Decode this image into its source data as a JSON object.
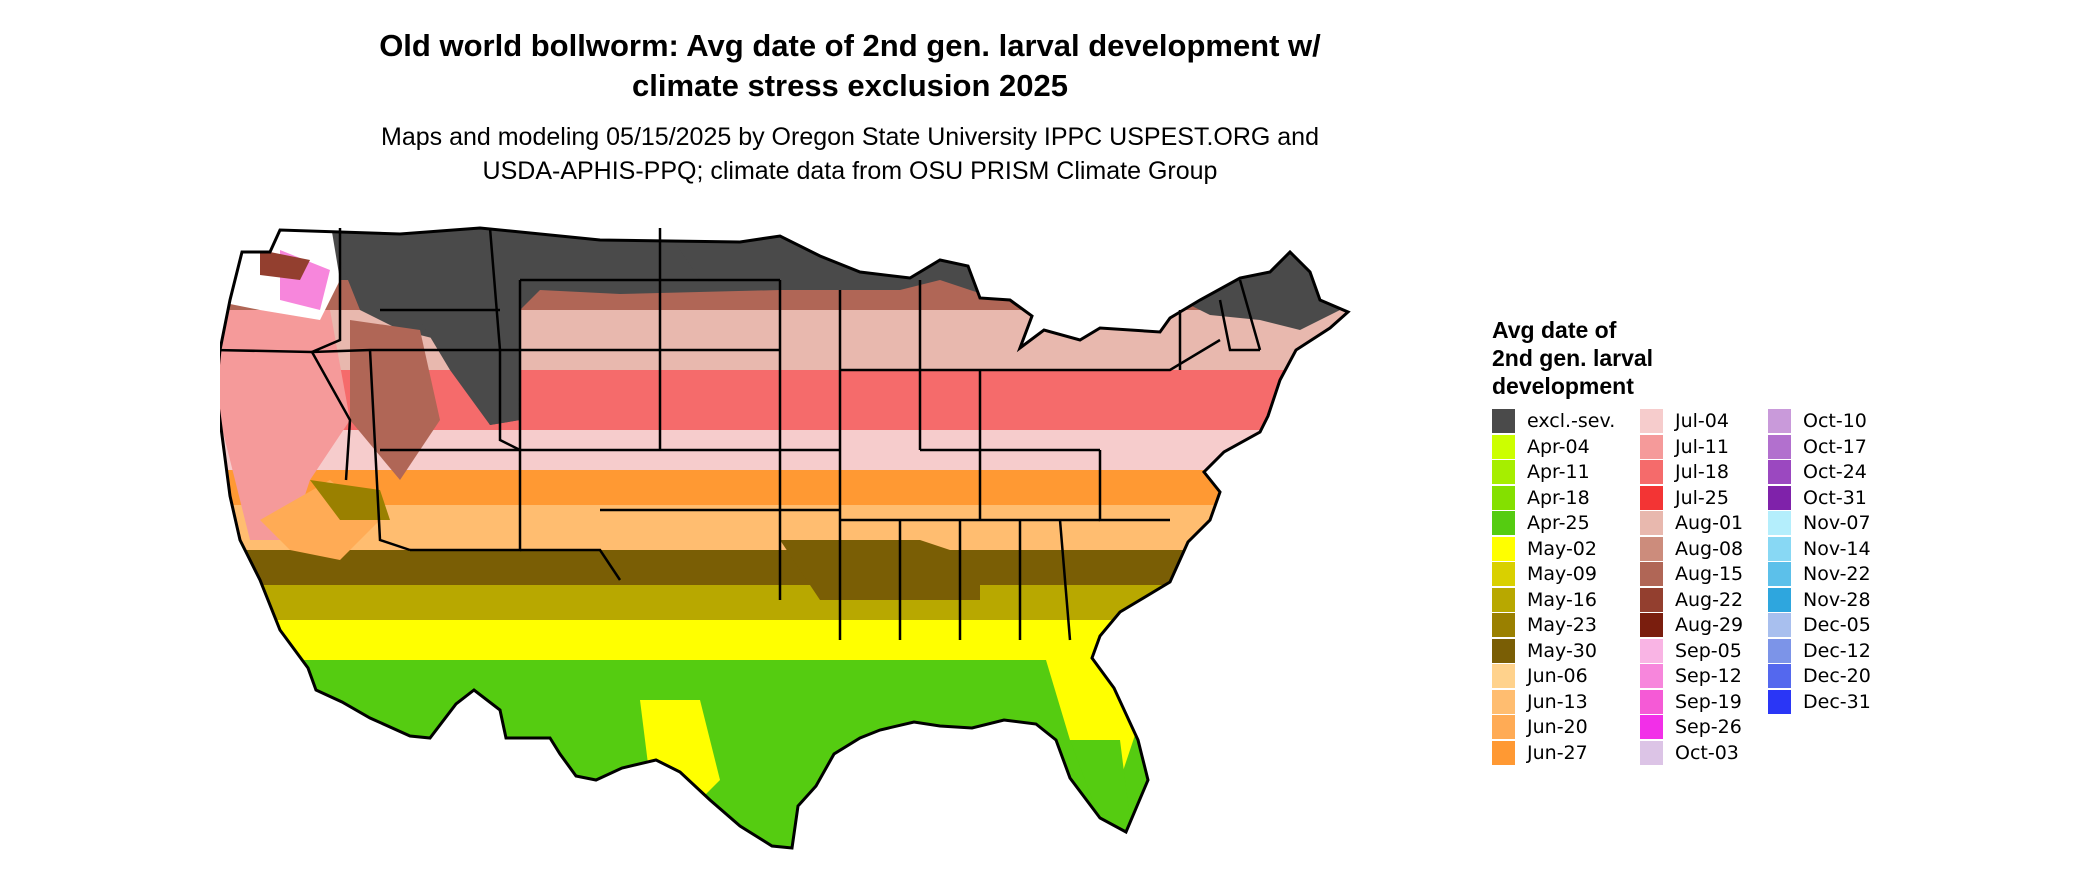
{
  "title_lines": [
    "Old world bollworm: Avg date of 2nd gen. larval development w/",
    "climate stress exclusion 2025"
  ],
  "subtitle_lines": [
    "Maps and modeling 05/15/2025 by Oregon State University IPPC USPEST.ORG and",
    "USDA-APHIS-PPQ; climate data from OSU PRISM Climate Group"
  ],
  "legend": {
    "title_lines": [
      "Avg date of",
      "2nd gen. larval",
      "development"
    ],
    "items": [
      {
        "label": "excl.-sev.",
        "color": "#4a4a4a"
      },
      {
        "label": "Apr-04",
        "color": "#ccff00"
      },
      {
        "label": "Apr-11",
        "color": "#a6ee00"
      },
      {
        "label": "Apr-18",
        "color": "#84e000"
      },
      {
        "label": "Apr-25",
        "color": "#55cc11"
      },
      {
        "label": "May-02",
        "color": "#ffff00"
      },
      {
        "label": "May-09",
        "color": "#d9d000"
      },
      {
        "label": "May-16",
        "color": "#b8a800"
      },
      {
        "label": "May-23",
        "color": "#9a8000"
      },
      {
        "label": "May-30",
        "color": "#7a5e05"
      },
      {
        "label": "Jun-06",
        "color": "#ffd28c"
      },
      {
        "label": "Jun-13",
        "color": "#ffbd70"
      },
      {
        "label": "Jun-20",
        "color": "#ffab55"
      },
      {
        "label": "Jun-27",
        "color": "#ff9933"
      },
      {
        "label": "Jul-04",
        "color": "#f6cccc"
      },
      {
        "label": "Jul-11",
        "color": "#f59a9a"
      },
      {
        "label": "Jul-18",
        "color": "#f56b6b"
      },
      {
        "label": "Jul-25",
        "color": "#f33434"
      },
      {
        "label": "Aug-01",
        "color": "#e8b8ae"
      },
      {
        "label": "Aug-08",
        "color": "#cc8c7c"
      },
      {
        "label": "Aug-15",
        "color": "#b06656"
      },
      {
        "label": "Aug-22",
        "color": "#933f2f"
      },
      {
        "label": "Aug-29",
        "color": "#7a1e0e"
      },
      {
        "label": "Sep-05",
        "color": "#f9b4e4"
      },
      {
        "label": "Sep-12",
        "color": "#f786dc"
      },
      {
        "label": "Sep-19",
        "color": "#f55ad6"
      },
      {
        "label": "Sep-26",
        "color": "#f22fe8"
      },
      {
        "label": "Oct-03",
        "color": "#dcc4e6"
      },
      {
        "label": "Oct-10",
        "color": "#c99ada"
      },
      {
        "label": "Oct-17",
        "color": "#b270ce"
      },
      {
        "label": "Oct-24",
        "color": "#9b48c0"
      },
      {
        "label": "Oct-31",
        "color": "#7f22aa"
      },
      {
        "label": "Nov-07",
        "color": "#b4eefc"
      },
      {
        "label": "Nov-14",
        "color": "#88d8f4"
      },
      {
        "label": "Nov-22",
        "color": "#5cc0ea"
      },
      {
        "label": "Nov-28",
        "color": "#2ea6de"
      },
      {
        "label": "Dec-05",
        "color": "#a8bfee"
      },
      {
        "label": "Dec-12",
        "color": "#7c94e8"
      },
      {
        "label": "Dec-20",
        "color": "#5468ee"
      },
      {
        "label": "Dec-31",
        "color": "#2a36f6"
      }
    ]
  },
  "map_colors": {
    "excluded": "#4a4a4a",
    "outline": "#000000",
    "background": "#ffffff"
  }
}
